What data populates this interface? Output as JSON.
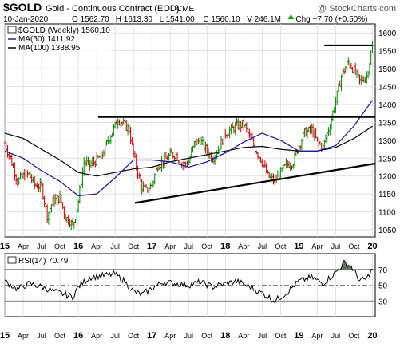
{
  "header": {
    "symbol": "$GOLD",
    "name": "Gold - Continuous Contract (EOD)",
    "exchange": "CME",
    "watermark": "@ StockCharts.com",
    "date": "10-Jan-2020",
    "quote": [
      {
        "label": "O",
        "value": "1562.70"
      },
      {
        "label": "H",
        "value": "1613.30"
      },
      {
        "label": "L",
        "value": "1541.00"
      },
      {
        "label": "C",
        "value": "1560.10"
      },
      {
        "label": "V",
        "value": "246.1M"
      },
      {
        "label": "Chg",
        "value": "+7.70 (+0.50%)"
      }
    ],
    "arrow_color": "#00aa00"
  },
  "legend": [
    {
      "text": "$GOLD (Weekly) 1560.10",
      "color": "#000000",
      "kind": "bars"
    },
    {
      "text": "MA(50) 1411.92",
      "color": "#1f1f9c",
      "kind": "line"
    },
    {
      "text": "MA(100) 1338.95",
      "color": "#000000",
      "kind": "line"
    }
  ],
  "rsi_legend": "RSI(14) 70.79",
  "colors": {
    "up": "#008800",
    "down": "#cc0000",
    "ma50": "#1f1f9c",
    "ma100": "#000000",
    "grid": "#d8d8d8",
    "rsi_fill": "#5a7a5a"
  },
  "chart_data": [
    {
      "type": "line",
      "title": "$GOLD Gold - Continuous Contract (EOD) CME",
      "x_ticks": [
        "15",
        "Apr",
        "Jul",
        "Oct",
        "16",
        "Apr",
        "Jul",
        "Oct",
        "17",
        "Apr",
        "Jul",
        "Oct",
        "18",
        "Apr",
        "Jul",
        "Oct",
        "19",
        "Apr",
        "Jul",
        "Oct",
        "20"
      ],
      "x_tick_weeks": [
        0,
        13,
        26,
        39,
        52,
        65,
        78,
        91,
        104,
        117,
        130,
        143,
        156,
        169,
        182,
        195,
        208,
        221,
        234,
        247,
        260
      ],
      "y_ticks": [
        1050,
        1100,
        1150,
        1200,
        1250,
        1300,
        1350,
        1400,
        1450,
        1500,
        1550,
        1600
      ],
      "ylim": [
        1030,
        1625
      ],
      "xlim": [
        0,
        262
      ],
      "grid": true,
      "legend_position": "top-left",
      "series": [
        {
          "name": "$GOLD (Weekly) 1560.10",
          "x": [
            0,
            4,
            9,
            13,
            17,
            21,
            26,
            30,
            34,
            39,
            43,
            46,
            48,
            50,
            52,
            56,
            60,
            65,
            69,
            73,
            78,
            80,
            84,
            88,
            91,
            95,
            97,
            100,
            104,
            108,
            112,
            117,
            121,
            126,
            130,
            134,
            138,
            143,
            147,
            151,
            156,
            160,
            164,
            169,
            173,
            178,
            182,
            186,
            191,
            195,
            199,
            204,
            208,
            212,
            217,
            221,
            225,
            230,
            234,
            238,
            243,
            247,
            251,
            256,
            260
          ],
          "values": [
            1290,
            1250,
            1185,
            1200,
            1205,
            1175,
            1170,
            1090,
            1130,
            1140,
            1085,
            1075,
            1060,
            1090,
            1130,
            1240,
            1230,
            1245,
            1260,
            1300,
            1340,
            1360,
            1345,
            1330,
            1260,
            1195,
            1170,
            1160,
            1175,
            1230,
            1240,
            1260,
            1260,
            1230,
            1240,
            1290,
            1300,
            1270,
            1250,
            1275,
            1320,
            1330,
            1340,
            1345,
            1310,
            1270,
            1240,
            1200,
            1185,
            1210,
            1230,
            1240,
            1285,
            1320,
            1330,
            1295,
            1280,
            1345,
            1410,
            1480,
            1520,
            1495,
            1465,
            1480,
            1560
          ]
        },
        {
          "name": "MA(50) 1411.92",
          "x": [
            0,
            13,
            26,
            39,
            52,
            65,
            78,
            91,
            104,
            117,
            130,
            143,
            156,
            169,
            182,
            195,
            208,
            221,
            234,
            247,
            260
          ],
          "values": [
            1270,
            1250,
            1215,
            1185,
            1145,
            1150,
            1195,
            1245,
            1245,
            1240,
            1225,
            1240,
            1265,
            1295,
            1320,
            1300,
            1270,
            1270,
            1285,
            1340,
            1412
          ]
        },
        {
          "name": "MA(100) 1338.95",
          "x": [
            0,
            13,
            26,
            39,
            52,
            65,
            78,
            91,
            104,
            117,
            130,
            143,
            156,
            169,
            182,
            195,
            208,
            221,
            234,
            247,
            260
          ],
          "values": [
            1320,
            1305,
            1275,
            1245,
            1210,
            1200,
            1210,
            1220,
            1225,
            1240,
            1250,
            1260,
            1270,
            1280,
            1283,
            1275,
            1270,
            1270,
            1280,
            1305,
            1339
          ]
        }
      ],
      "annotations": [
        {
          "kind": "horizontal_line",
          "y": 1365,
          "x_from": 66,
          "x_to": 262
        },
        {
          "kind": "trendline",
          "x1": 92,
          "y1": 1125,
          "x2": 262,
          "y2": 1235
        },
        {
          "kind": "horizontal_line",
          "y": 1565,
          "x_from": 226,
          "x_to": 260
        }
      ]
    },
    {
      "type": "line",
      "title": "RSI(14) 70.79",
      "y_ticks": [
        30,
        50,
        70
      ],
      "ylim": [
        10,
        90
      ],
      "reference_lines": [
        30,
        50,
        70
      ],
      "grid": true,
      "series": [
        {
          "name": "RSI(14) 70.79",
          "x": [
            0,
            9,
            17,
            26,
            35,
            43,
            48,
            52,
            60,
            69,
            78,
            84,
            91,
            97,
            104,
            112,
            121,
            130,
            138,
            147,
            156,
            164,
            173,
            182,
            191,
            199,
            208,
            217,
            225,
            234,
            240,
            245,
            251,
            256,
            260
          ],
          "values": [
            55,
            45,
            52,
            48,
            42,
            38,
            35,
            48,
            60,
            62,
            64,
            56,
            42,
            38,
            46,
            54,
            52,
            50,
            54,
            48,
            52,
            55,
            48,
            40,
            30,
            40,
            55,
            60,
            52,
            66,
            78,
            74,
            56,
            58,
            71
          ]
        }
      ]
    }
  ]
}
